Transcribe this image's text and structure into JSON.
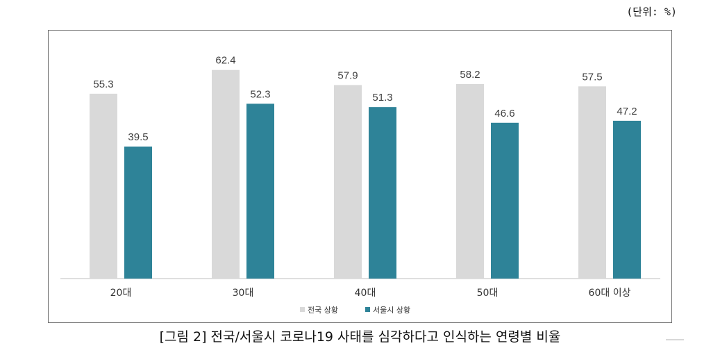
{
  "unit_label": "(단위: %)",
  "caption": "[그림 2] 전국/서울시 코로나19 사태를 심각하다고 인식하는 연령별 비율",
  "colors": {
    "national": "#d9d9d9",
    "seoul": "#2e8398",
    "axis": "#bfbfbf",
    "text": "#404040"
  },
  "chart_data": {
    "type": "bar",
    "categories": [
      "20대",
      "30대",
      "40대",
      "50대",
      "60대 이상"
    ],
    "series": [
      {
        "name": "전국 상황",
        "values": [
          55.3,
          62.4,
          57.9,
          58.2,
          57.5
        ]
      },
      {
        "name": "서울시 상황",
        "values": [
          39.5,
          52.3,
          51.3,
          46.6,
          47.2
        ]
      }
    ],
    "ylim": [
      0,
      66.5
    ],
    "grid": false,
    "legend_position": "bottom-center",
    "data_labels": true
  }
}
